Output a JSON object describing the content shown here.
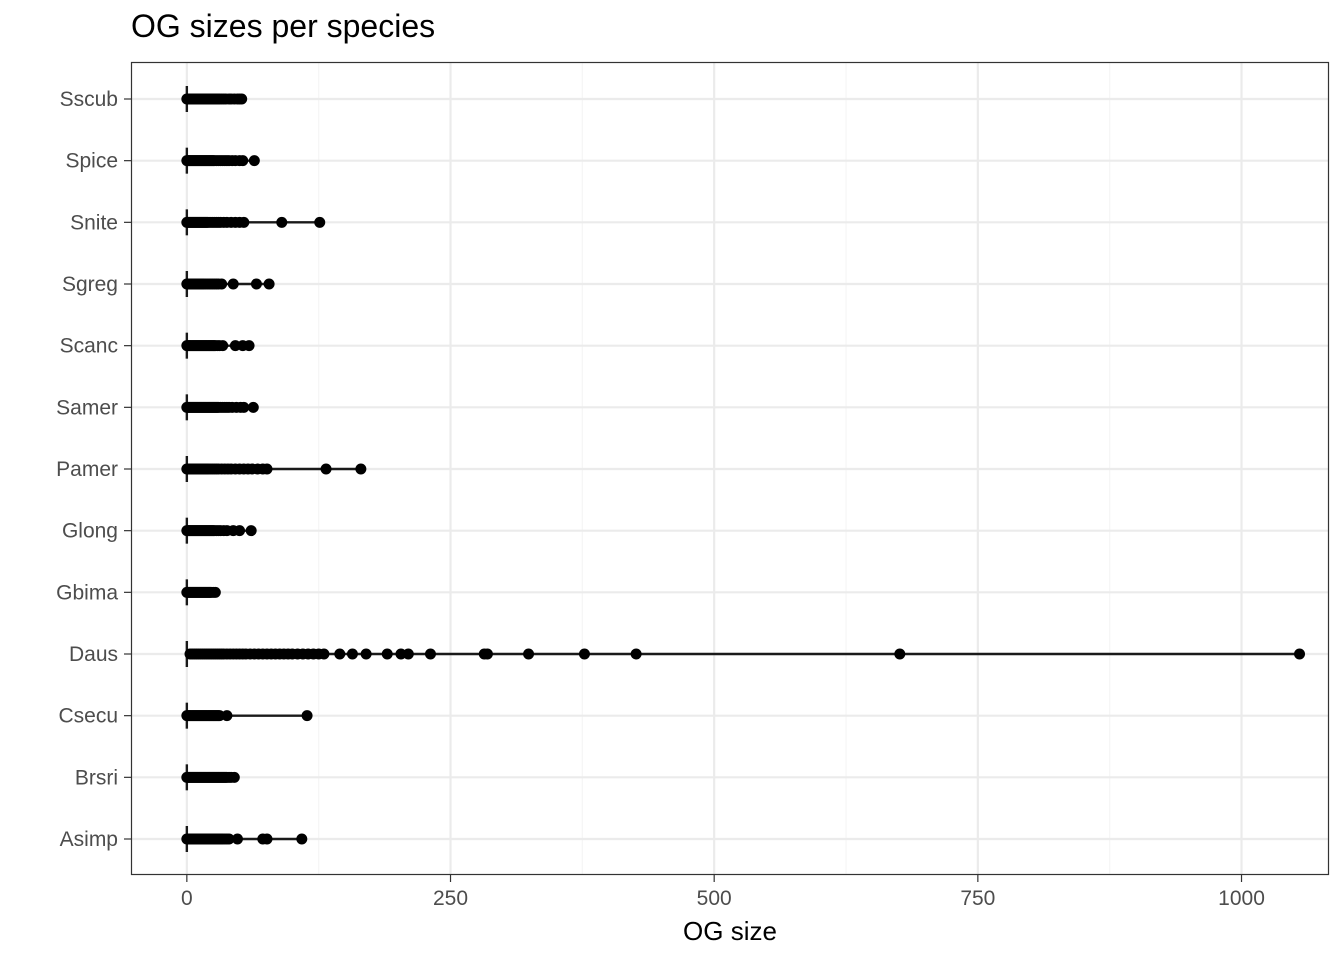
{
  "chart_data": {
    "type": "scatter",
    "title": "OG sizes per species",
    "xlabel": "OG size",
    "ylabel": "",
    "xlim": [
      -52,
      1082
    ],
    "xticks": [
      0,
      250,
      500,
      750,
      1000
    ],
    "xtick_labels": [
      "0",
      "250",
      "500",
      "750",
      "1000"
    ],
    "grid": true,
    "categories": [
      "Asimp",
      "Brsri",
      "Csecu",
      "Daus",
      "Gbima",
      "Glong",
      "Pamer",
      "Samer",
      "Scanc",
      "Sgreg",
      "Snite",
      "Spice",
      "Sscub"
    ],
    "series": [
      {
        "category": "Sscub",
        "values": [
          0,
          1,
          2,
          3,
          4,
          5,
          6,
          7,
          8,
          9,
          10,
          11,
          12,
          13,
          14,
          15,
          16,
          17,
          18,
          19,
          20,
          21,
          22,
          23,
          24,
          25,
          26,
          27,
          28,
          29,
          30,
          31,
          33,
          35,
          37,
          40,
          42,
          45,
          48,
          50,
          52
        ]
      },
      {
        "category": "Spice",
        "values": [
          0,
          1,
          2,
          3,
          4,
          5,
          6,
          7,
          8,
          9,
          10,
          11,
          12,
          13,
          14,
          15,
          16,
          17,
          18,
          19,
          20,
          21,
          22,
          23,
          24,
          25,
          26,
          28,
          30,
          32,
          34,
          36,
          38,
          40,
          43,
          46,
          50,
          53,
          64
        ]
      },
      {
        "category": "Snite",
        "values": [
          0,
          1,
          2,
          3,
          4,
          5,
          6,
          7,
          8,
          9,
          10,
          11,
          12,
          13,
          14,
          15,
          16,
          17,
          18,
          19,
          20,
          22,
          24,
          26,
          28,
          30,
          32,
          35,
          38,
          42,
          46,
          50,
          54,
          90,
          126
        ]
      },
      {
        "category": "Sgreg",
        "values": [
          0,
          1,
          2,
          3,
          4,
          5,
          6,
          7,
          8,
          9,
          10,
          11,
          12,
          13,
          14,
          15,
          16,
          18,
          20,
          22,
          24,
          26,
          28,
          30,
          33,
          44,
          66,
          78
        ]
      },
      {
        "category": "Scanc",
        "values": [
          0,
          1,
          2,
          3,
          4,
          5,
          6,
          7,
          8,
          9,
          10,
          11,
          12,
          13,
          14,
          15,
          16,
          17,
          18,
          19,
          20,
          21,
          22,
          23,
          24,
          25,
          26,
          27,
          29,
          31,
          34,
          46,
          53,
          59
        ]
      },
      {
        "category": "Samer",
        "values": [
          0,
          1,
          2,
          3,
          4,
          5,
          6,
          7,
          8,
          9,
          10,
          11,
          12,
          13,
          14,
          15,
          16,
          17,
          18,
          19,
          20,
          21,
          22,
          23,
          24,
          25,
          26,
          27,
          28,
          29,
          30,
          32,
          34,
          36,
          38,
          40,
          43,
          47,
          51,
          54,
          63
        ]
      },
      {
        "category": "Pamer",
        "values": [
          0,
          1,
          2,
          3,
          4,
          5,
          6,
          7,
          8,
          9,
          10,
          11,
          12,
          13,
          14,
          15,
          16,
          17,
          18,
          19,
          20,
          22,
          24,
          26,
          28,
          30,
          33,
          36,
          39,
          42,
          46,
          50,
          54,
          58,
          62,
          67,
          72,
          76,
          132,
          165
        ]
      },
      {
        "category": "Glong",
        "values": [
          0,
          1,
          2,
          3,
          4,
          5,
          6,
          7,
          8,
          9,
          10,
          11,
          12,
          13,
          14,
          15,
          16,
          17,
          18,
          19,
          20,
          21,
          22,
          23,
          24,
          25,
          26,
          28,
          30,
          32,
          35,
          38,
          44,
          50,
          61
        ]
      },
      {
        "category": "Gbima",
        "values": [
          0,
          1,
          2,
          3,
          4,
          5,
          6,
          7,
          8,
          9,
          10,
          11,
          12,
          13,
          14,
          15,
          16,
          17,
          18,
          19,
          20,
          21,
          22,
          23,
          25,
          27
        ]
      },
      {
        "category": "Daus",
        "values": [
          3,
          5,
          7,
          9,
          11,
          13,
          15,
          17,
          19,
          21,
          23,
          25,
          27,
          29,
          31,
          33,
          35,
          38,
          41,
          44,
          47,
          50,
          53,
          56,
          60,
          64,
          68,
          72,
          76,
          80,
          84,
          88,
          92,
          96,
          100,
          105,
          110,
          115,
          120,
          125,
          130,
          145,
          157,
          170,
          190,
          203,
          210,
          231,
          282,
          285,
          324,
          377,
          426,
          676,
          1055
        ]
      },
      {
        "category": "Csecu",
        "values": [
          0,
          1,
          2,
          3,
          4,
          5,
          6,
          7,
          8,
          9,
          10,
          11,
          12,
          13,
          14,
          15,
          16,
          17,
          18,
          19,
          20,
          21,
          22,
          23,
          24,
          25,
          26,
          27,
          28,
          29,
          30,
          31,
          38,
          114
        ]
      },
      {
        "category": "Brsri",
        "values": [
          0,
          1,
          2,
          3,
          4,
          5,
          6,
          7,
          8,
          9,
          10,
          11,
          12,
          13,
          14,
          15,
          16,
          17,
          18,
          19,
          20,
          21,
          22,
          23,
          24,
          25,
          26,
          27,
          28,
          29,
          30,
          31,
          32,
          33,
          34,
          35,
          36,
          37,
          38,
          40,
          42,
          45
        ]
      },
      {
        "category": "Asimp",
        "values": [
          0,
          1,
          2,
          3,
          4,
          5,
          6,
          7,
          8,
          9,
          10,
          11,
          12,
          13,
          14,
          15,
          16,
          17,
          18,
          19,
          20,
          21,
          22,
          23,
          24,
          25,
          26,
          27,
          28,
          29,
          30,
          31,
          32,
          33,
          34,
          36,
          38,
          40,
          48,
          72,
          76,
          109
        ]
      }
    ]
  },
  "colors": {
    "point": "#000000",
    "line": "#1a1a1a",
    "grid_major": "#ebebeb",
    "grid_minor": "#f5f5f5",
    "panel_border": "#333333",
    "tick_text": "#4d4d4d"
  }
}
